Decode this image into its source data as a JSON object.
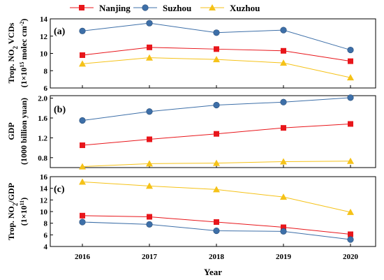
{
  "chart_data": {
    "type": "line",
    "x": [
      "2016",
      "2017",
      "2018",
      "2019",
      "2020"
    ],
    "xlabel": "Year",
    "legend": {
      "placement": "top",
      "entries": [
        {
          "name": "Nanjing",
          "color": "#e8161b",
          "marker": "square"
        },
        {
          "name": "Suzhou",
          "color": "#3d6fa8",
          "marker": "circle"
        },
        {
          "name": "Xuzhou",
          "color": "#f5c218",
          "marker": "triangle"
        }
      ]
    },
    "panels": [
      {
        "label": "(a)",
        "ylabel_lines": [
          "Trop. NO",
          "2",
          " VCDs",
          "(1×10",
          "15",
          " molec cm",
          "-2",
          ")"
        ],
        "ylim": [
          6,
          14
        ],
        "yticks": [
          6,
          8,
          10,
          12,
          14
        ],
        "ytick_labels": [
          "6",
          "8",
          "10",
          "12",
          "14"
        ],
        "series": [
          {
            "name": "Nanjing",
            "values": [
              9.8,
              10.7,
              10.5,
              10.3,
              9.1
            ]
          },
          {
            "name": "Suzhou",
            "values": [
              12.6,
              13.5,
              12.4,
              12.7,
              10.4
            ]
          },
          {
            "name": "Xuzhou",
            "values": [
              8.8,
              9.5,
              9.3,
              8.9,
              7.2
            ]
          }
        ]
      },
      {
        "label": "(b)",
        "ylabel_lines": [
          "GDP",
          "(1000 billion yuan)"
        ],
        "ylim": [
          0.6,
          2.05
        ],
        "yticks": [
          0.8,
          1.2,
          1.6,
          2.0
        ],
        "ytick_labels": [
          "0.8",
          "1.2",
          "1.6",
          "2.0"
        ],
        "series": [
          {
            "name": "Nanjing",
            "values": [
              1.05,
              1.17,
              1.28,
              1.4,
              1.48
            ]
          },
          {
            "name": "Suzhou",
            "values": [
              1.55,
              1.73,
              1.86,
              1.92,
              2.01
            ]
          },
          {
            "name": "Xuzhou",
            "values": [
              0.62,
              0.68,
              0.69,
              0.72,
              0.73
            ]
          }
        ]
      },
      {
        "label": "(c)",
        "ylabel_lines": [
          "Trop. NO",
          "2",
          "/GDP",
          "(1×10",
          "11",
          ")"
        ],
        "ylim": [
          4,
          16
        ],
        "yticks": [
          4,
          6,
          8,
          10,
          12,
          14,
          16
        ],
        "ytick_labels": [
          "4",
          "6",
          "8",
          "10",
          "12",
          "14",
          "16"
        ],
        "series": [
          {
            "name": "Nanjing",
            "values": [
              9.3,
              9.1,
              8.2,
              7.3,
              6.1
            ]
          },
          {
            "name": "Suzhou",
            "values": [
              8.2,
              7.8,
              6.7,
              6.6,
              5.2
            ]
          },
          {
            "name": "Xuzhou",
            "values": [
              15.1,
              14.4,
              13.8,
              12.5,
              9.9
            ]
          }
        ]
      }
    ]
  }
}
